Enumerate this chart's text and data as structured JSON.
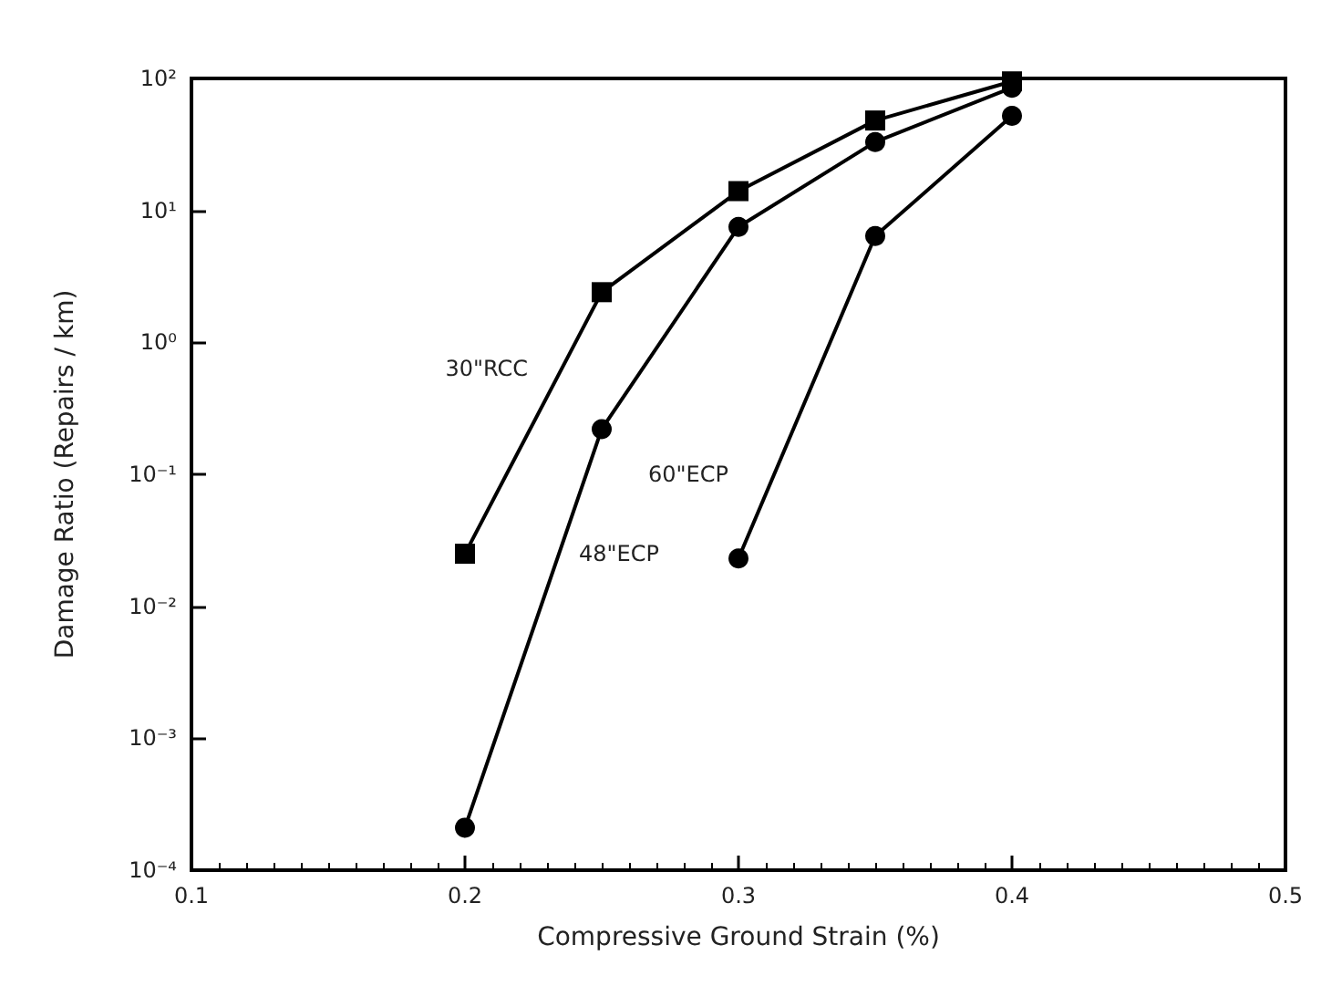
{
  "chart_data": {
    "type": "line",
    "xlabel": "Compressive Ground Strain (%)",
    "ylabel": "Damage Ratio (Repairs / km)",
    "log": "y",
    "grid": false,
    "legend": false,
    "line_style": "solid",
    "xlim": [
      0.1,
      0.5
    ],
    "xticks": [
      {
        "value": 0.1,
        "label": "0.1"
      },
      {
        "value": 0.2,
        "label": "0.2"
      },
      {
        "value": 0.3,
        "label": "0.3"
      },
      {
        "value": 0.4,
        "label": "0.4"
      },
      {
        "value": 0.5,
        "label": "0.5"
      }
    ],
    "ylim": [
      0.0001,
      100
    ],
    "yticks": [
      {
        "value": 0.0001,
        "label": "10⁻⁴"
      },
      {
        "value": 0.001,
        "label": "10⁻³"
      },
      {
        "value": 0.01,
        "label": "10⁻²"
      },
      {
        "value": 0.1,
        "label": "10⁻¹"
      },
      {
        "value": 1,
        "label": "10⁰"
      },
      {
        "value": 10,
        "label": "10¹"
      },
      {
        "value": 100,
        "label": "10²"
      }
    ],
    "series": [
      {
        "name": "30\"RCC",
        "color": "#000000",
        "marker": "square",
        "x": [
          0.2,
          0.25,
          0.3,
          0.35,
          0.4
        ],
        "values": [
          0.025,
          2.4,
          14,
          48,
          95
        ]
      },
      {
        "name": "48\"ECP",
        "color": "#000000",
        "marker": "circle",
        "x": [
          0.2,
          0.25,
          0.3,
          0.35,
          0.4
        ],
        "values": [
          0.00021,
          0.22,
          7.5,
          33,
          85
        ]
      },
      {
        "name": "60\"ECP",
        "color": "#000000",
        "marker": "circle",
        "x": [
          0.3,
          0.35,
          0.4
        ],
        "values": [
          0.023,
          6.4,
          52
        ]
      }
    ]
  }
}
